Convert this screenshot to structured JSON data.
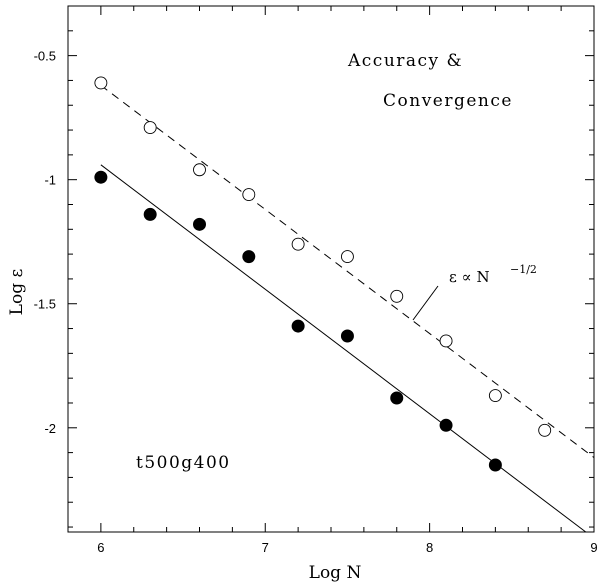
{
  "chart_data": {
    "type": "scatter",
    "xlabel": "Log N",
    "ylabel": "Log ε",
    "xlim": [
      5.8,
      9.0
    ],
    "ylim": [
      -2.42,
      -0.3
    ],
    "xticks": [
      6,
      7,
      8,
      9
    ],
    "yticks": [
      -0.5,
      -1,
      -1.5,
      -2
    ],
    "xtick_labels": [
      "6",
      "7",
      "8",
      "9"
    ],
    "ytick_labels": [
      "-0.5",
      "-1",
      "-1.5",
      "-2"
    ],
    "grid": false,
    "series": [
      {
        "style": "open-circle",
        "x": [
          6.0,
          6.3,
          6.6,
          6.9,
          7.2,
          7.5,
          7.8,
          8.1,
          8.4,
          8.7
        ],
        "y": [
          -0.61,
          -0.79,
          -0.96,
          -1.06,
          -1.26,
          -1.31,
          -1.47,
          -1.65,
          -1.87,
          -2.01
        ]
      },
      {
        "style": "filled-circle",
        "x": [
          6.0,
          6.3,
          6.6,
          6.9,
          7.2,
          7.5,
          7.8,
          8.1,
          8.4
        ],
        "y": [
          -0.99,
          -1.14,
          -1.18,
          -1.31,
          -1.59,
          -1.63,
          -1.88,
          -1.99,
          -2.15
        ]
      }
    ],
    "lines": [
      {
        "style": "dashed",
        "x": [
          6.0,
          9.0
        ],
        "y": [
          -0.62,
          -2.12
        ]
      },
      {
        "style": "solid",
        "x": [
          6.0,
          8.95
        ],
        "y": [
          -0.94,
          -2.42
        ]
      }
    ],
    "annotations": {
      "title_line1": "Accuracy &",
      "title_line2": "Convergence",
      "model_label": "t500g400",
      "relation_prefix": "ε ∝ N",
      "relation_exponent": "−1/2"
    }
  }
}
